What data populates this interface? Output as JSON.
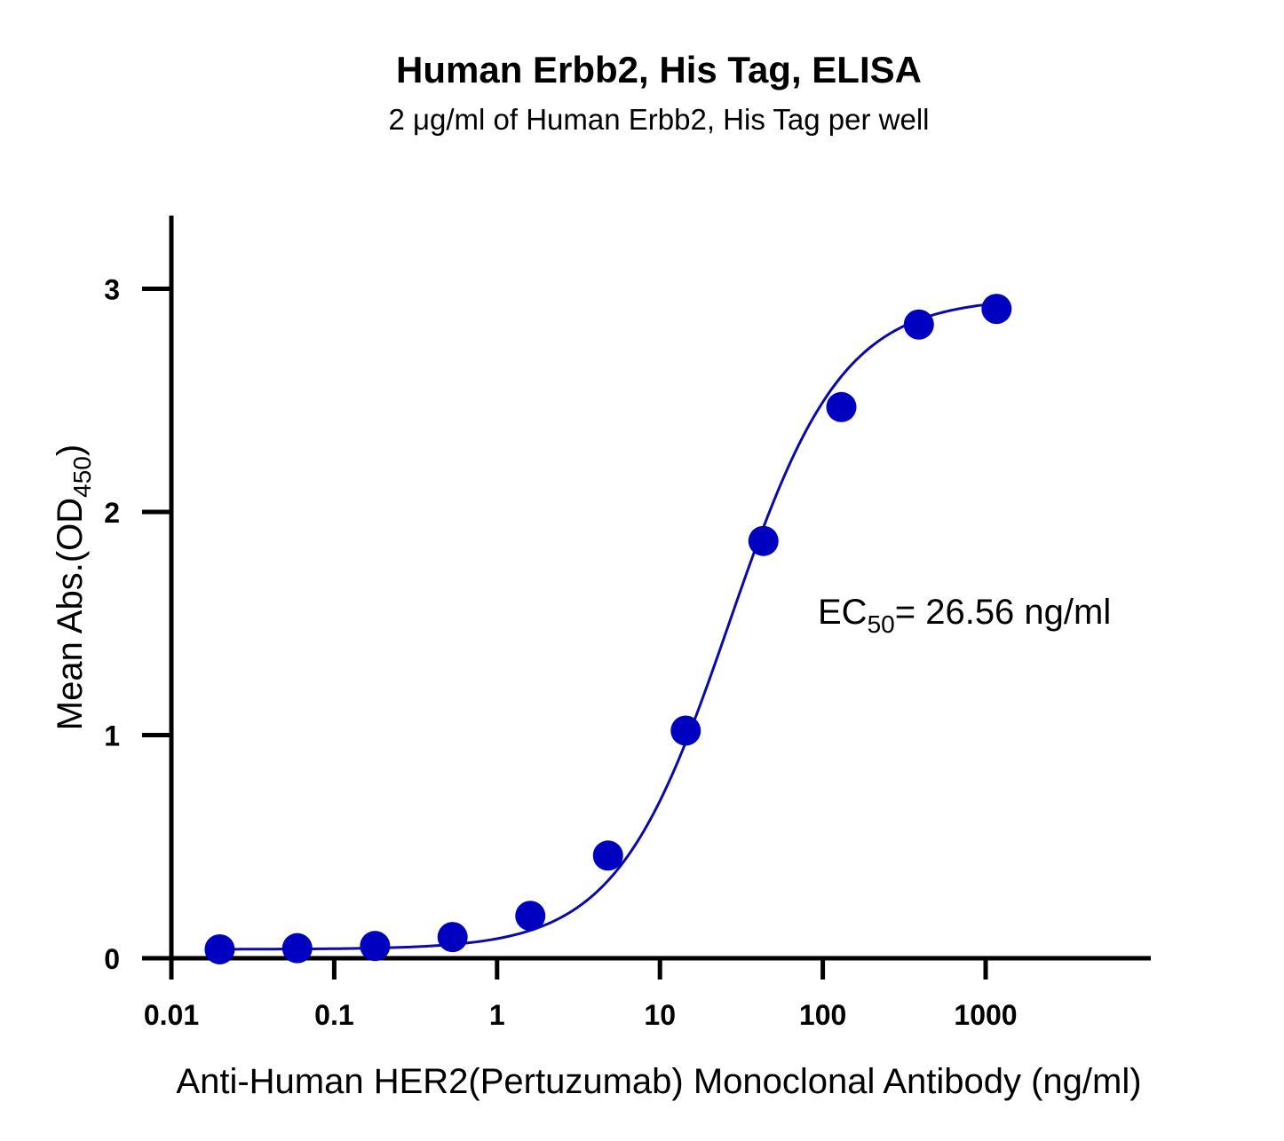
{
  "chart_data": {
    "type": "scatter",
    "title": "Human Erbb2, His Tag, ELISA",
    "subtitle": "2 μg/ml of Human Erbb2, His Tag per well",
    "xlabel": "Anti-Human HER2(Pertuzumab) Monoclonal Antibody (ng/ml)",
    "ylabel_main": "Mean Abs.(OD",
    "ylabel_sub": "450",
    "ylabel_close": ")",
    "x_scale": "log",
    "xlim": [
      0.01,
      10000
    ],
    "ylim": [
      0,
      3.3
    ],
    "x_ticks": [
      0.01,
      0.1,
      1,
      10,
      100,
      1000
    ],
    "x_tick_labels": [
      "0.01",
      "0.1",
      "1",
      "10",
      "100",
      "1000"
    ],
    "y_ticks": [
      0,
      1,
      2,
      3
    ],
    "y_tick_labels": [
      "0",
      "1",
      "2",
      "3"
    ],
    "grid": false,
    "series": [
      {
        "color": "#0000c0",
        "x": [
          0.0198,
          0.0593,
          0.178,
          0.533,
          1.6,
          4.8,
          14.4,
          43.2,
          130,
          389,
          1167
        ],
        "y": [
          0.04,
          0.045,
          0.055,
          0.095,
          0.19,
          0.46,
          1.02,
          1.87,
          2.47,
          2.84,
          2.91
        ]
      }
    ],
    "fit": {
      "model": "4PL",
      "bottom": 0.04,
      "top": 2.96,
      "ec50": 26.56,
      "hill": 1.25
    },
    "annotation": {
      "prefix": "EC",
      "sub": "50",
      "text": "= 26.56 ng/ml"
    }
  }
}
